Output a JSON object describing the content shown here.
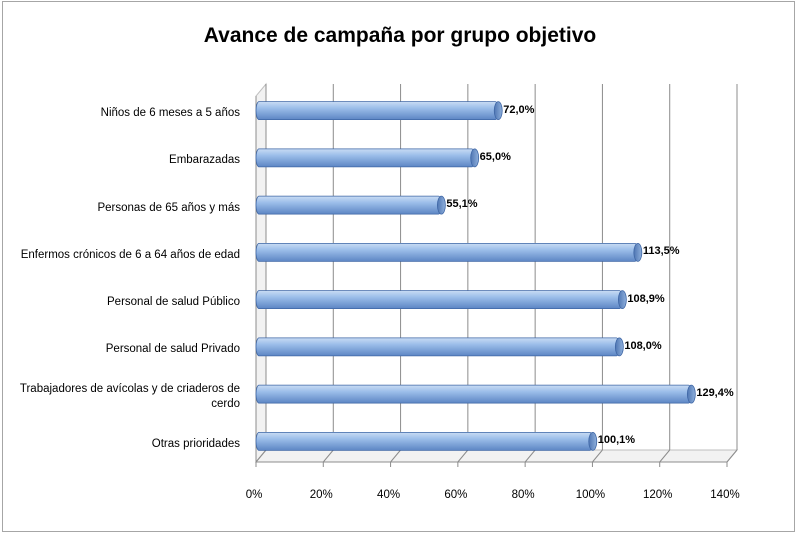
{
  "chart_data": {
    "type": "bar",
    "orientation": "horizontal",
    "title": "Avance de campaña por grupo objetivo",
    "categories": [
      "Niños de 6 meses a 5 años",
      "Embarazadas",
      "Personas de 65 años y más",
      "Enfermos crónicos de 6 a 64 años de edad",
      "Personal de salud Público",
      "Personal de salud Privado",
      "Trabajadores de avícolas y de criaderos de cerdo",
      "Otras prioridades"
    ],
    "values": [
      72.0,
      65.0,
      55.1,
      113.5,
      108.9,
      108.0,
      129.4,
      100.1
    ],
    "data_labels": [
      "72,0%",
      "65,0%",
      "55,1%",
      "113,5%",
      "108,9%",
      "108,0%",
      "129,4%",
      "100,1%"
    ],
    "xlim": [
      0,
      140
    ],
    "x_ticks": [
      "0%",
      "20%",
      "40%",
      "60%",
      "80%",
      "100%",
      "120%",
      "140%"
    ],
    "grid": true,
    "bar_color": "#8fb4e3",
    "legend": "none"
  }
}
